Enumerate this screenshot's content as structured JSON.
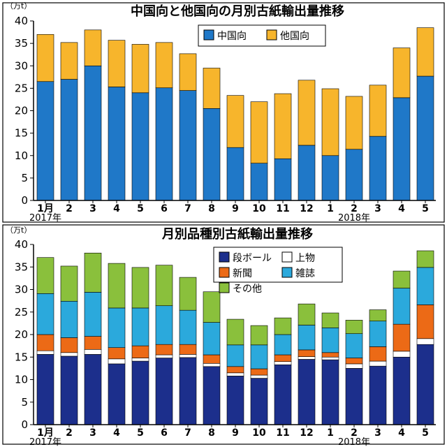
{
  "chart_data": [
    {
      "type": "bar",
      "stacked": true,
      "title": "中国向と他国向の月別古紙輸出量推移",
      "unit": "（万t）",
      "categories": [
        "1月",
        "2",
        "3",
        "4",
        "5",
        "6",
        "7",
        "8",
        "9",
        "10",
        "11",
        "12",
        "1",
        "2",
        "3",
        "4",
        "5"
      ],
      "year_labels": [
        {
          "label": "2017年",
          "index": 0
        },
        {
          "label": "2018年",
          "index": 13
        }
      ],
      "ylim": [
        0,
        40
      ],
      "yticks": [
        0,
        5,
        10,
        15,
        20,
        25,
        30,
        35,
        40
      ],
      "grid": false,
      "legend_position": "top-right",
      "series": [
        {
          "name": "中国向",
          "color": "#1f78c8",
          "values": [
            26.5,
            27.0,
            30.0,
            25.3,
            24.0,
            25.1,
            24.5,
            20.5,
            11.8,
            8.3,
            9.3,
            12.3,
            10.0,
            11.4,
            14.3,
            22.9,
            27.7
          ]
        },
        {
          "name": "他国向",
          "color": "#f7b52c",
          "values": [
            10.5,
            8.2,
            8.0,
            10.4,
            10.8,
            10.1,
            8.2,
            9.0,
            11.6,
            13.7,
            14.5,
            14.5,
            14.9,
            11.8,
            11.4,
            11.1,
            10.8
          ]
        }
      ]
    },
    {
      "type": "bar",
      "stacked": true,
      "title": "月別品種別古紙輸出量推移",
      "unit": "（万t）",
      "categories": [
        "1月",
        "2",
        "3",
        "4",
        "5",
        "6",
        "7",
        "8",
        "9",
        "10",
        "11",
        "12",
        "1",
        "2",
        "3",
        "4",
        "5"
      ],
      "year_labels": [
        {
          "label": "2017年",
          "index": 0
        },
        {
          "label": "2018年",
          "index": 13
        }
      ],
      "ylim": [
        0,
        40
      ],
      "yticks": [
        0,
        5,
        10,
        15,
        20,
        25,
        30,
        35,
        40
      ],
      "grid": false,
      "legend_position": "top-right",
      "series": [
        {
          "name": "段ボール",
          "color": "#1c2f8c",
          "values": [
            15.6,
            15.2,
            15.6,
            13.5,
            14.1,
            14.8,
            14.9,
            12.9,
            10.8,
            10.3,
            13.3,
            14.5,
            14.4,
            12.5,
            13.0,
            15.0,
            17.8
          ]
        },
        {
          "name": "上物",
          "color": "#ffffff",
          "values": [
            0.8,
            0.8,
            1.1,
            1.1,
            0.7,
            0.7,
            0.7,
            0.7,
            0.7,
            0.7,
            0.7,
            0.6,
            0.6,
            1.0,
            1.1,
            1.3,
            1.3
          ]
        },
        {
          "name": "新聞",
          "color": "#ec6a16",
          "values": [
            3.6,
            3.3,
            2.9,
            2.5,
            2.7,
            2.3,
            2.2,
            1.9,
            1.4,
            1.4,
            1.5,
            1.5,
            1.0,
            1.3,
            3.2,
            6.0,
            7.5
          ]
        },
        {
          "name": "雑誌",
          "color": "#2ba9dc",
          "values": [
            9.1,
            8.1,
            9.8,
            8.8,
            8.4,
            8.6,
            7.6,
            7.2,
            4.8,
            5.3,
            4.5,
            5.5,
            5.5,
            5.4,
            5.7,
            8.0,
            8.3
          ]
        },
        {
          "name": "その他",
          "color": "#8ac03c",
          "values": [
            8.0,
            7.8,
            8.7,
            9.9,
            9.0,
            9.0,
            7.3,
            6.8,
            5.7,
            4.3,
            3.7,
            4.7,
            3.3,
            3.0,
            2.5,
            3.8,
            3.7
          ]
        }
      ]
    }
  ]
}
